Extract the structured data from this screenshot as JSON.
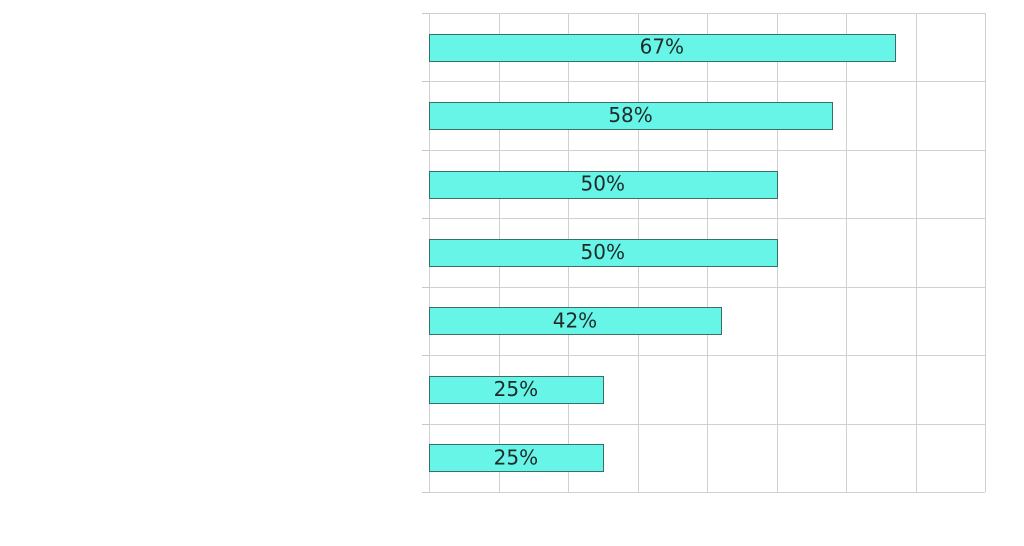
{
  "chart_data": {
    "type": "bar",
    "orientation": "horizontal",
    "categories": [
      "",
      "",
      "",
      "",
      "",
      "",
      ""
    ],
    "values": [
      67,
      58,
      50,
      50,
      42,
      25,
      25
    ],
    "data_labels": [
      "67%",
      "58%",
      "50%",
      "50%",
      "42%",
      "25%",
      "25%"
    ],
    "xlim": [
      0,
      80
    ],
    "x_grid_step": 10,
    "grid": true,
    "bar_color": "#66f5e6",
    "bar_edge_color": "#3a6f69",
    "title": "",
    "xlabel": "",
    "ylabel": ""
  }
}
